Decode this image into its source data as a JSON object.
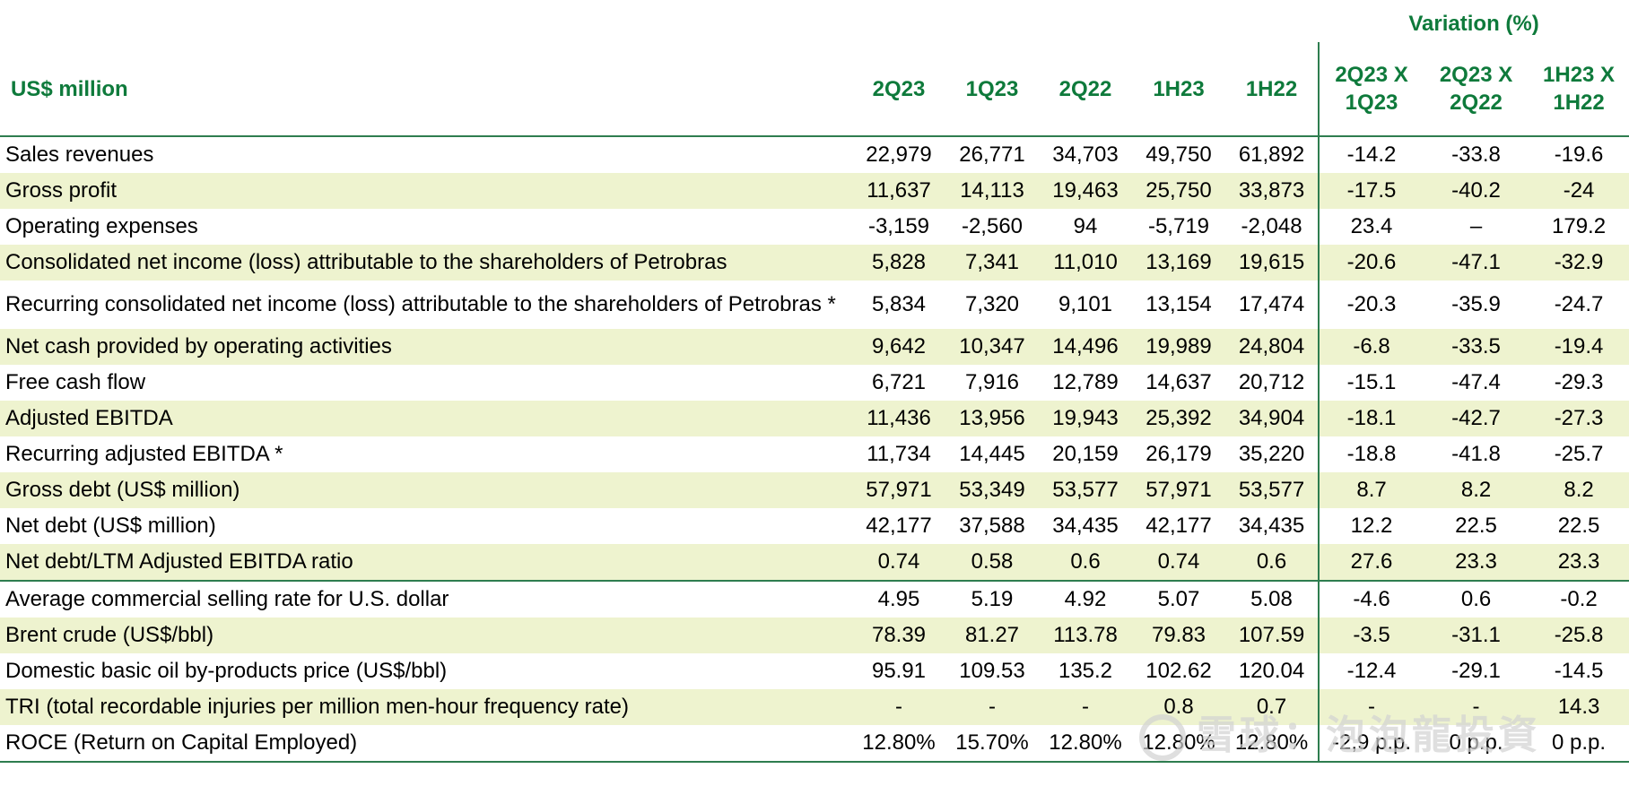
{
  "chart_data": {
    "type": "table",
    "unit_header": "US$ million",
    "variation_header": "Variation (%)",
    "columns": [
      "2Q23",
      "1Q23",
      "2Q22",
      "1H23",
      "1H22"
    ],
    "variation_columns": [
      "2Q23 X 1Q23",
      "2Q23 X 2Q22",
      "1H23 X 1H22"
    ],
    "rows": [
      {
        "label": "Sales revenues",
        "values": [
          "22,979",
          "26,771",
          "34,703",
          "49,750",
          "61,892"
        ],
        "variation": [
          "-14.2",
          "-33.8",
          "-19.6"
        ]
      },
      {
        "label": "Gross profit",
        "values": [
          "11,637",
          "14,113",
          "19,463",
          "25,750",
          "33,873"
        ],
        "variation": [
          "-17.5",
          "-40.2",
          "-24"
        ]
      },
      {
        "label": "Operating expenses",
        "values": [
          "-3,159",
          "-2,560",
          "94",
          "-5,719",
          "-2,048"
        ],
        "variation": [
          "23.4",
          "–",
          "179.2"
        ]
      },
      {
        "label": "Consolidated net income (loss) attributable to the shareholders of Petrobras",
        "values": [
          "5,828",
          "7,341",
          "11,010",
          "13,169",
          "19,615"
        ],
        "variation": [
          "-20.6",
          "-47.1",
          "-32.9"
        ]
      },
      {
        "label": "Recurring consolidated net income (loss) attributable to the shareholders of Petrobras *",
        "values": [
          "5,834",
          "7,320",
          "9,101",
          "13,154",
          "17,474"
        ],
        "variation": [
          "-20.3",
          "-35.9",
          "-24.7"
        ]
      },
      {
        "label": "Net cash provided by operating activities",
        "values": [
          "9,642",
          "10,347",
          "14,496",
          "19,989",
          "24,804"
        ],
        "variation": [
          "-6.8",
          "-33.5",
          "-19.4"
        ]
      },
      {
        "label": "Free cash flow",
        "values": [
          "6,721",
          "7,916",
          "12,789",
          "14,637",
          "20,712"
        ],
        "variation": [
          "-15.1",
          "-47.4",
          "-29.3"
        ]
      },
      {
        "label": "Adjusted EBITDA",
        "values": [
          "11,436",
          "13,956",
          "19,943",
          "25,392",
          "34,904"
        ],
        "variation": [
          "-18.1",
          "-42.7",
          "-27.3"
        ]
      },
      {
        "label": "Recurring adjusted EBITDA *",
        "values": [
          "11,734",
          "14,445",
          "20,159",
          "26,179",
          "35,220"
        ],
        "variation": [
          "-18.8",
          "-41.8",
          "-25.7"
        ]
      },
      {
        "label": "Gross debt (US$ million)",
        "values": [
          "57,971",
          "53,349",
          "53,577",
          "57,971",
          "53,577"
        ],
        "variation": [
          "8.7",
          "8.2",
          "8.2"
        ]
      },
      {
        "label": "Net debt (US$ million)",
        "values": [
          "42,177",
          "37,588",
          "34,435",
          "42,177",
          "34,435"
        ],
        "variation": [
          "12.2",
          "22.5",
          "22.5"
        ]
      },
      {
        "label": "Net debt/LTM Adjusted EBITDA ratio",
        "values": [
          "0.74",
          "0.58",
          "0.6",
          "0.74",
          "0.6"
        ],
        "variation": [
          "27.6",
          "23.3",
          "23.3"
        ]
      },
      {
        "label": "Average commercial selling rate for U.S. dollar",
        "values": [
          "4.95",
          "5.19",
          "4.92",
          "5.07",
          "5.08"
        ],
        "variation": [
          "-4.6",
          "0.6",
          "-0.2"
        ]
      },
      {
        "label": "Brent crude (US$/bbl)",
        "values": [
          "78.39",
          "81.27",
          "113.78",
          "79.83",
          "107.59"
        ],
        "variation": [
          "-3.5",
          "-31.1",
          "-25.8"
        ]
      },
      {
        "label": "Domestic basic oil by-products price (US$/bbl)",
        "values": [
          "95.91",
          "109.53",
          "135.2",
          "102.62",
          "120.04"
        ],
        "variation": [
          "-12.4",
          "-29.1",
          "-14.5"
        ]
      },
      {
        "label": "TRI (total recordable injuries per million men-hour frequency rate)",
        "values": [
          "-",
          "-",
          "-",
          "0.8",
          "0.7"
        ],
        "variation": [
          "-",
          "-",
          "14.3"
        ]
      },
      {
        "label": "ROCE (Return on Capital Employed)",
        "values": [
          "12.80%",
          "15.70%",
          "12.80%",
          "12.80%",
          "12.80%"
        ],
        "variation": [
          "-2,9 p.p.",
          "0 p.p.",
          "0 p.p."
        ]
      }
    ]
  },
  "watermark": {
    "text": "雪球：泡泡龍投資"
  }
}
